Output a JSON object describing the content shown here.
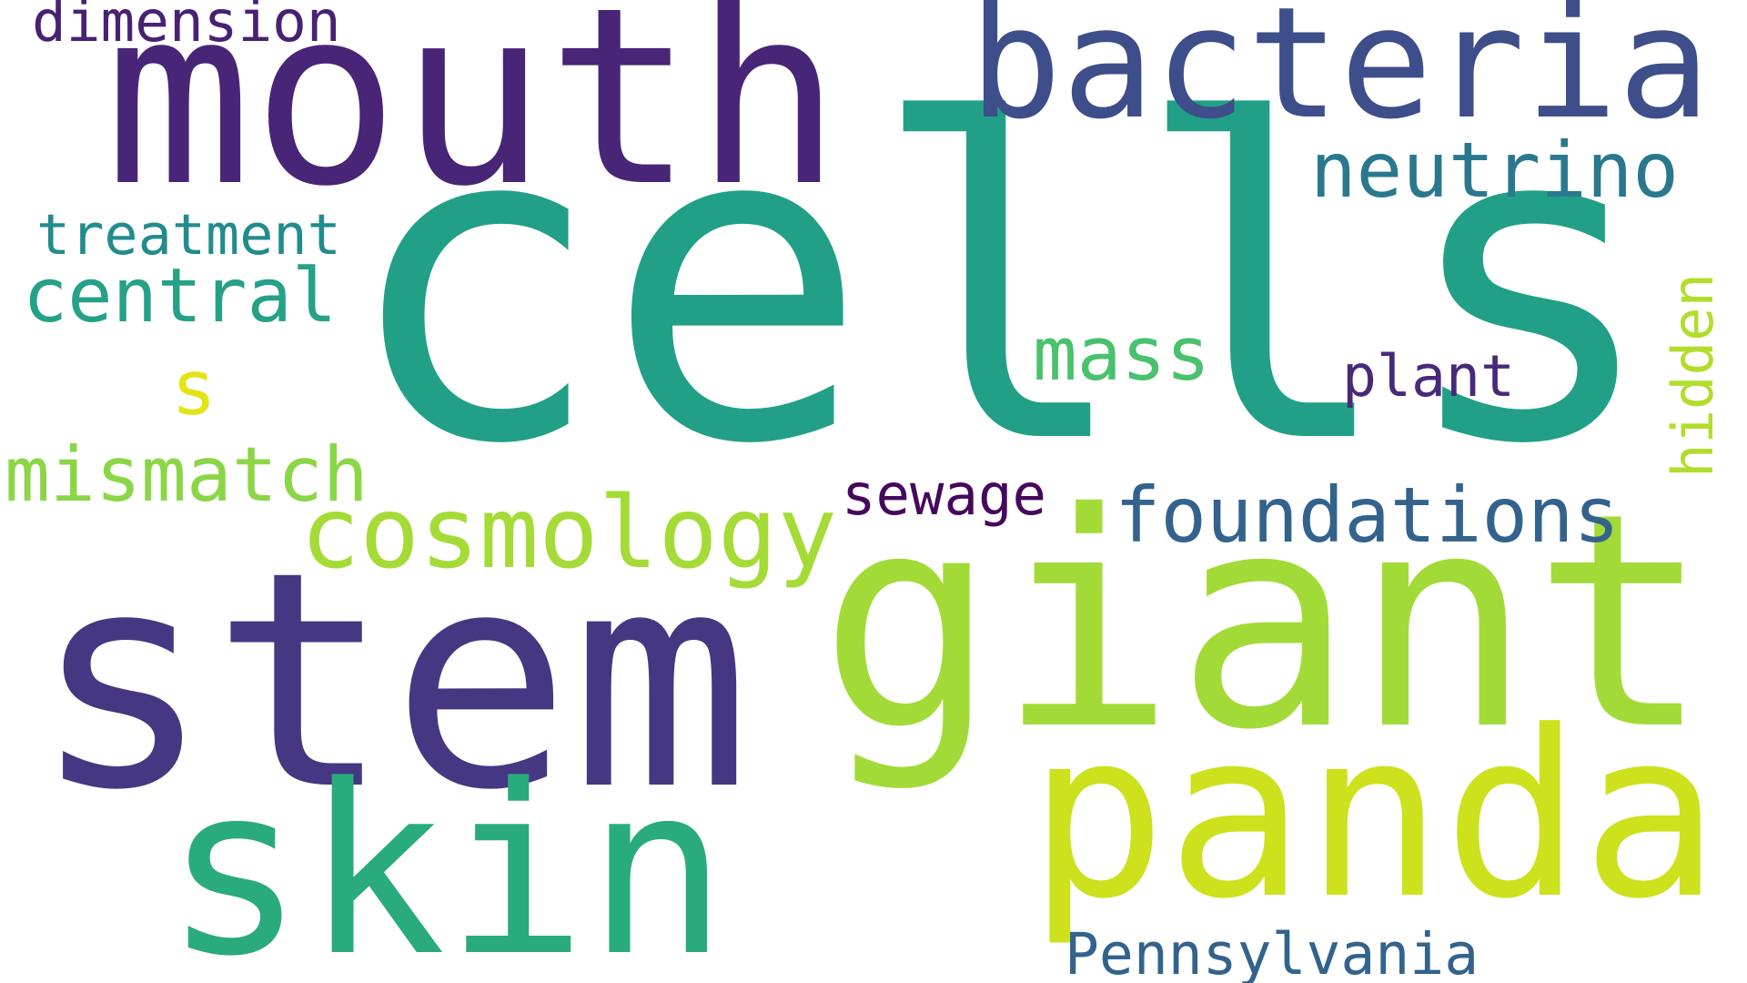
{
  "words": [
    {
      "key": "cells",
      "text": "cells",
      "color": "#21a087"
    },
    {
      "key": "giant",
      "text": "giant",
      "color": "#a2db37"
    },
    {
      "key": "stem",
      "text": "stem",
      "color": "#453781"
    },
    {
      "key": "mouth",
      "text": "mouth",
      "color": "#482576"
    },
    {
      "key": "panda",
      "text": "panda",
      "color": "#cde11d"
    },
    {
      "key": "skin",
      "text": "skin",
      "color": "#2aab7c"
    },
    {
      "key": "bacteria",
      "text": "bacteria",
      "color": "#3d4e8a"
    },
    {
      "key": "cosmology",
      "text": "cosmology",
      "color": "#a5db36"
    },
    {
      "key": "foundations",
      "text": "foundations",
      "color": "#33638d"
    },
    {
      "key": "neutrino",
      "text": "neutrino",
      "color": "#2a788e"
    },
    {
      "key": "central",
      "text": "central",
      "color": "#25a187"
    },
    {
      "key": "mismatch",
      "text": "mismatch",
      "color": "#8bd646"
    },
    {
      "key": "mass",
      "text": "mass",
      "color": "#4ac16d"
    },
    {
      "key": "treatment",
      "text": "treatment",
      "color": "#228c8d"
    },
    {
      "key": "plant",
      "text": "plant",
      "color": "#482979"
    },
    {
      "key": "pennsylvania",
      "text": "Pennsylvania",
      "color": "#33638d"
    },
    {
      "key": "s",
      "text": "s",
      "color": "#e3e418"
    },
    {
      "key": "sewage",
      "text": "sewage",
      "color": "#46085c"
    },
    {
      "key": "dimension",
      "text": "dimension",
      "color": "#482173"
    },
    {
      "key": "hidden",
      "text": "hidden",
      "color": "#b2dd2d"
    }
  ]
}
